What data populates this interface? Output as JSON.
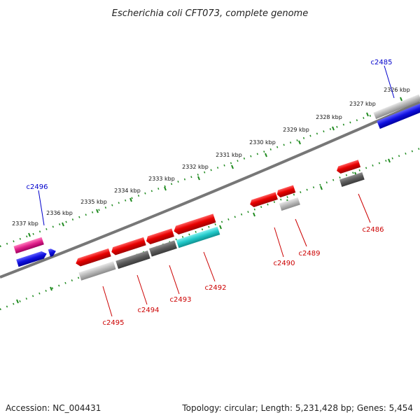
{
  "title": "Escherichia coli CFT073, complete genome",
  "footer": {
    "accession": "Accession: NC_004431",
    "info": "Topology: circular; Length: 5,231,428 bp; Genes: 5,454"
  },
  "colors": {
    "backbone": "#777777",
    "tick": "#1e8a1e",
    "gene_label_top": "#0000cc",
    "gene_label_bottom": "#cc0000",
    "red": "#e80000",
    "dark_gray": "#606060",
    "light_gray": "#b8b8b8",
    "cyan": "#20c8c8",
    "blue": "#1010e0",
    "magenta": "#e0208a"
  },
  "kbp_labels": [
    "2326 kbp",
    "2327 kbp",
    "2328 kbp",
    "2329 kbp",
    "2330 kbp",
    "2331 kbp",
    "2332 kbp",
    "2333 kbp",
    "2334 kbp",
    "2335 kbp",
    "2336 kbp",
    "2337 kbp"
  ],
  "gene_labels": {
    "top": [
      "c2485",
      "c2496"
    ],
    "bottom": [
      "c2486",
      "c2489",
      "c2490",
      "c2492",
      "c2493",
      "c2494",
      "c2495"
    ]
  }
}
